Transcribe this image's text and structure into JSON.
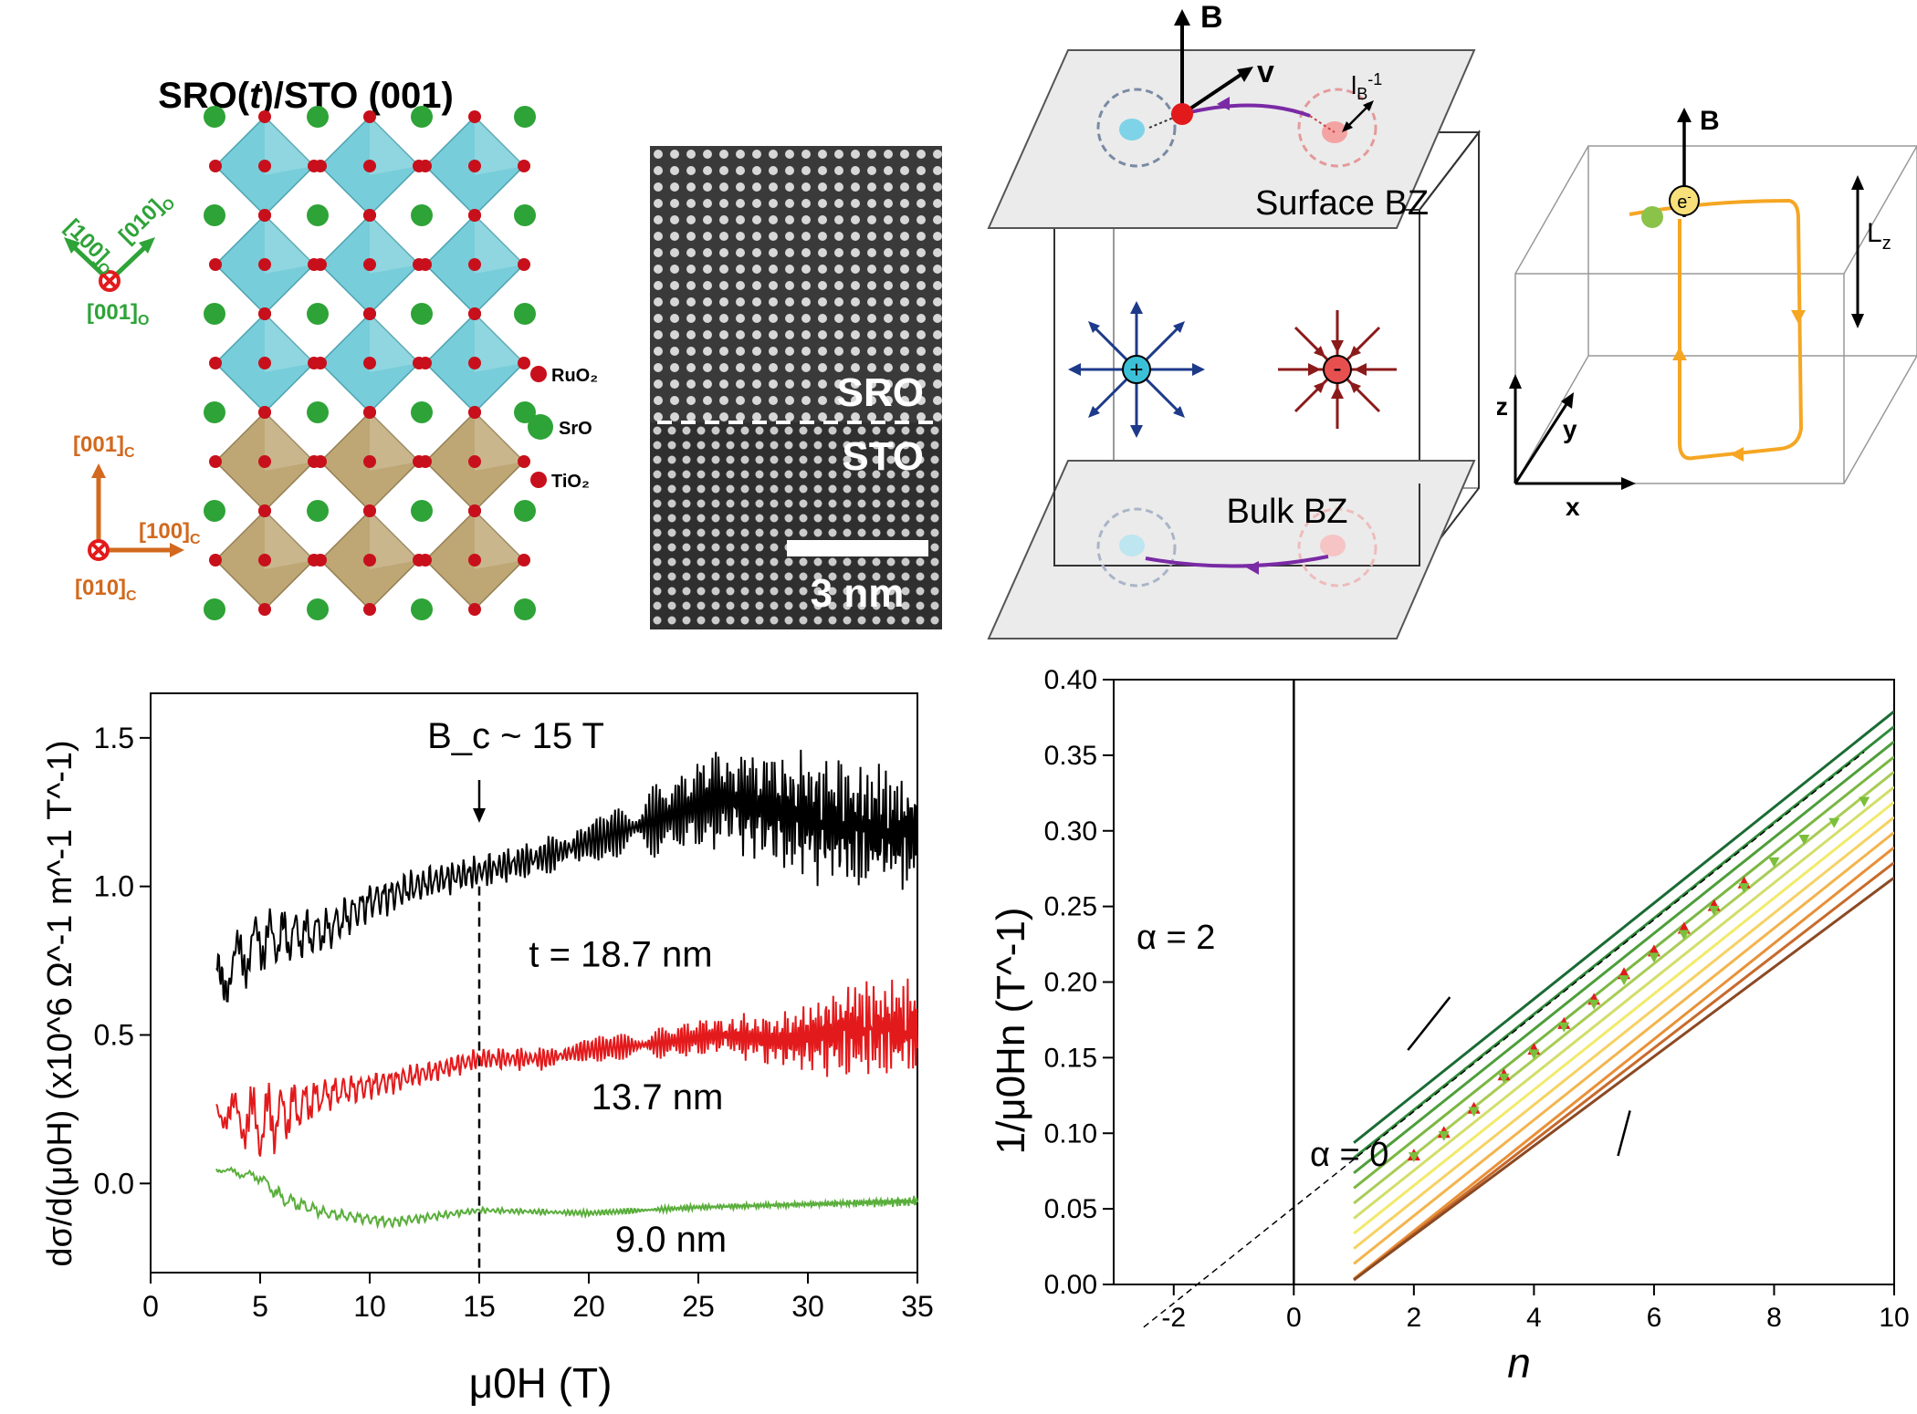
{
  "crystal": {
    "title": "SRO(t)/STO (001)",
    "title_pre": "SRO(",
    "title_t": "t",
    "title_post": ")/STO (001)",
    "layers": [
      "RuO₂",
      "SrO",
      "TiO₂"
    ],
    "ortho_axes": {
      "a": "[100]",
      "b": "[010]",
      "c": "[001]",
      "sub": "O"
    },
    "cubic_axes": {
      "a": "[001]",
      "b": "[100]",
      "c": "[010]",
      "sub": "C"
    },
    "colors": {
      "octa_top": "#6cc9d6",
      "octa_bottom": "#b9a06a",
      "oxygen": "#c8101c",
      "sr": "#2ea337",
      "ortho": "#2ea337",
      "cubic": "#d2691e"
    }
  },
  "tem": {
    "label_top": "SRO",
    "label_bottom": "STO",
    "scalebar": "3 nm"
  },
  "brillouin": {
    "field": "B",
    "velocity": "v",
    "length_label": "l",
    "length_sub": "B",
    "length_sup": "-1",
    "surface_label": "Surface BZ",
    "bulk_label": "Bulk BZ",
    "plus": "+",
    "minus": "-"
  },
  "orbit": {
    "field": "B",
    "electron": "e",
    "electron_sup": "-",
    "lz": "L",
    "lz_sub": "z",
    "axes": [
      "z",
      "y",
      "x"
    ]
  },
  "chart_data": [
    {
      "type": "line",
      "xlabel": "μ0H (T)",
      "ylabel": "dσ/d(μ0H) (x10^6 Ω^-1 m^-1 T^-1)",
      "xlim": [
        0,
        35
      ],
      "ylim": [
        -0.3,
        1.65
      ],
      "xticks": [
        0,
        5,
        10,
        15,
        20,
        25,
        30,
        35
      ],
      "yticks": [
        0.0,
        0.5,
        1.0,
        1.5
      ],
      "annotation": "B_c ~ 15 T",
      "annotation_x": 15,
      "series": [
        {
          "name": "t = 18.7 nm",
          "color": "#000000",
          "x": [
            3,
            5,
            8,
            10,
            13,
            15,
            18,
            20,
            23,
            26,
            29,
            32,
            35
          ],
          "y": [
            0.68,
            0.82,
            0.85,
            0.95,
            1.02,
            1.05,
            1.1,
            1.15,
            1.22,
            1.3,
            1.25,
            1.2,
            1.18
          ],
          "amplitude": [
            0.12,
            0.12,
            0.08,
            0.07,
            0.06,
            0.06,
            0.07,
            0.08,
            0.12,
            0.18,
            0.22,
            0.24,
            0.2
          ]
        },
        {
          "name": "13.7 nm",
          "color": "#e31a1c",
          "x": [
            3,
            5,
            8,
            10,
            13,
            15,
            18,
            20,
            23,
            26,
            29,
            32,
            35
          ],
          "y": [
            0.25,
            0.2,
            0.3,
            0.33,
            0.38,
            0.42,
            0.42,
            0.45,
            0.47,
            0.5,
            0.48,
            0.52,
            0.52
          ],
          "amplitude": [
            0.05,
            0.15,
            0.06,
            0.05,
            0.04,
            0.04,
            0.04,
            0.04,
            0.05,
            0.07,
            0.1,
            0.18,
            0.18
          ]
        },
        {
          "name": "9.0 nm",
          "color": "#5aae3c",
          "x": [
            3,
            5,
            6,
            8,
            11,
            15,
            20,
            25,
            30,
            35
          ],
          "y": [
            0.05,
            0.02,
            -0.05,
            -0.1,
            -0.13,
            -0.09,
            -0.1,
            -0.08,
            -0.07,
            -0.06
          ],
          "amplitude": [
            0.01,
            0.02,
            0.03,
            0.02,
            0.02,
            0.01,
            0.01,
            0.01,
            0.01,
            0.02
          ]
        }
      ]
    },
    {
      "type": "line",
      "xlabel": "n",
      "ylabel": "1/μ0Hn (T^-1)",
      "xlim": [
        -3,
        10
      ],
      "ylim": [
        0.0,
        0.4
      ],
      "xticks": [
        -2,
        0,
        2,
        4,
        6,
        8,
        10
      ],
      "yticks": [
        0.0,
        0.05,
        0.1,
        0.15,
        0.2,
        0.25,
        0.3,
        0.35,
        0.4
      ],
      "annotations": [
        "α = 2",
        "α = 0"
      ],
      "fan_lines": {
        "x_start": 1,
        "slope": 0.0317,
        "intercepts": [
          0.062,
          0.052,
          0.042,
          0.032,
          0.022,
          0.012,
          0.002,
          -0.008,
          -0.018,
          -0.028,
          -0.038,
          -0.048
        ],
        "colors": [
          "#1a6b34",
          "#2f8a3a",
          "#4e9e3a",
          "#7bb743",
          "#a8cc56",
          "#d3de6a",
          "#f2ea6c",
          "#f6d264",
          "#f3b44e",
          "#e89038",
          "#c76a2c",
          "#8b4a24"
        ]
      },
      "fit_line": {
        "slope": 0.0317,
        "intercept": 0.051,
        "x_range": [
          -2.5,
          9.5
        ]
      },
      "series": [
        {
          "name": "red",
          "color": "#e31a1c",
          "x": [
            2,
            2.5,
            3,
            3.5,
            4,
            4.5,
            5,
            5.5,
            6,
            6.5,
            7,
            7.5
          ],
          "y": [
            0.085,
            0.1,
            0.116,
            0.138,
            0.155,
            0.172,
            0.188,
            0.205,
            0.22,
            0.235,
            0.25,
            0.265
          ]
        },
        {
          "name": "green",
          "color": "#7bbf3a",
          "x": [
            2,
            2.5,
            3,
            3.5,
            4,
            4.5,
            5,
            5.5,
            6,
            6.5,
            7,
            7.5,
            8,
            8.5,
            9,
            9.5
          ],
          "y": [
            0.085,
            0.099,
            0.115,
            0.137,
            0.153,
            0.171,
            0.186,
            0.202,
            0.217,
            0.232,
            0.248,
            0.263,
            0.28,
            0.295,
            0.306,
            0.32
          ]
        }
      ]
    }
  ]
}
